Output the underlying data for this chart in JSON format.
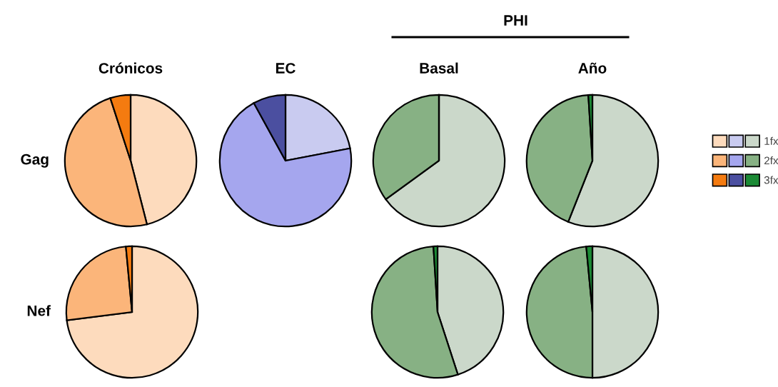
{
  "chart_data": [
    {
      "type": "pie",
      "title": "Crónicos",
      "ylabel": "Gag",
      "categories": [
        null,
        null,
        null
      ],
      "values": [
        46,
        49,
        5
      ],
      "colors": [
        "#fddbbd",
        "#fbb57a",
        "#f47b10"
      ]
    },
    {
      "type": "pie",
      "title": "EC",
      "categories": [
        null,
        null,
        null
      ],
      "values": [
        22,
        70,
        8
      ],
      "colors": [
        "#c9cbf0",
        "#a5a6ee",
        "#4b4fa0"
      ]
    },
    {
      "type": "pie",
      "title": "Basal",
      "annotations": [
        "PHI"
      ],
      "categories": [
        null,
        null,
        null
      ],
      "values": [
        65,
        35,
        0
      ],
      "colors": [
        "#cbd8ca",
        "#87b184",
        "#1b8a35"
      ]
    },
    {
      "type": "pie",
      "title": "Año",
      "legend": "right",
      "categories": [
        "1fx",
        "2fx",
        "3fx"
      ],
      "values": [
        56,
        43,
        1
      ],
      "colors": [
        "#cbd8ca",
        "#87b184",
        "#1b8a35"
      ]
    },
    {
      "type": "pie",
      "ylabel": "Nef",
      "categories": [
        null,
        null,
        null
      ],
      "values": [
        73,
        25.5,
        1.5
      ],
      "colors": [
        "#fddbbd",
        "#fbb57a",
        "#f47b10"
      ]
    },
    {
      "type": "pie",
      "categories": [
        null,
        null,
        null
      ],
      "values": [
        45,
        54,
        1
      ],
      "colors": [
        "#cbd8ca",
        "#87b184",
        "#1b8a35"
      ]
    },
    {
      "type": "pie",
      "categories": [
        null,
        null,
        null
      ],
      "values": [
        50,
        48.5,
        1.5
      ],
      "colors": [
        "#cbd8ca",
        "#87b184",
        "#1b8a35"
      ]
    }
  ]
}
